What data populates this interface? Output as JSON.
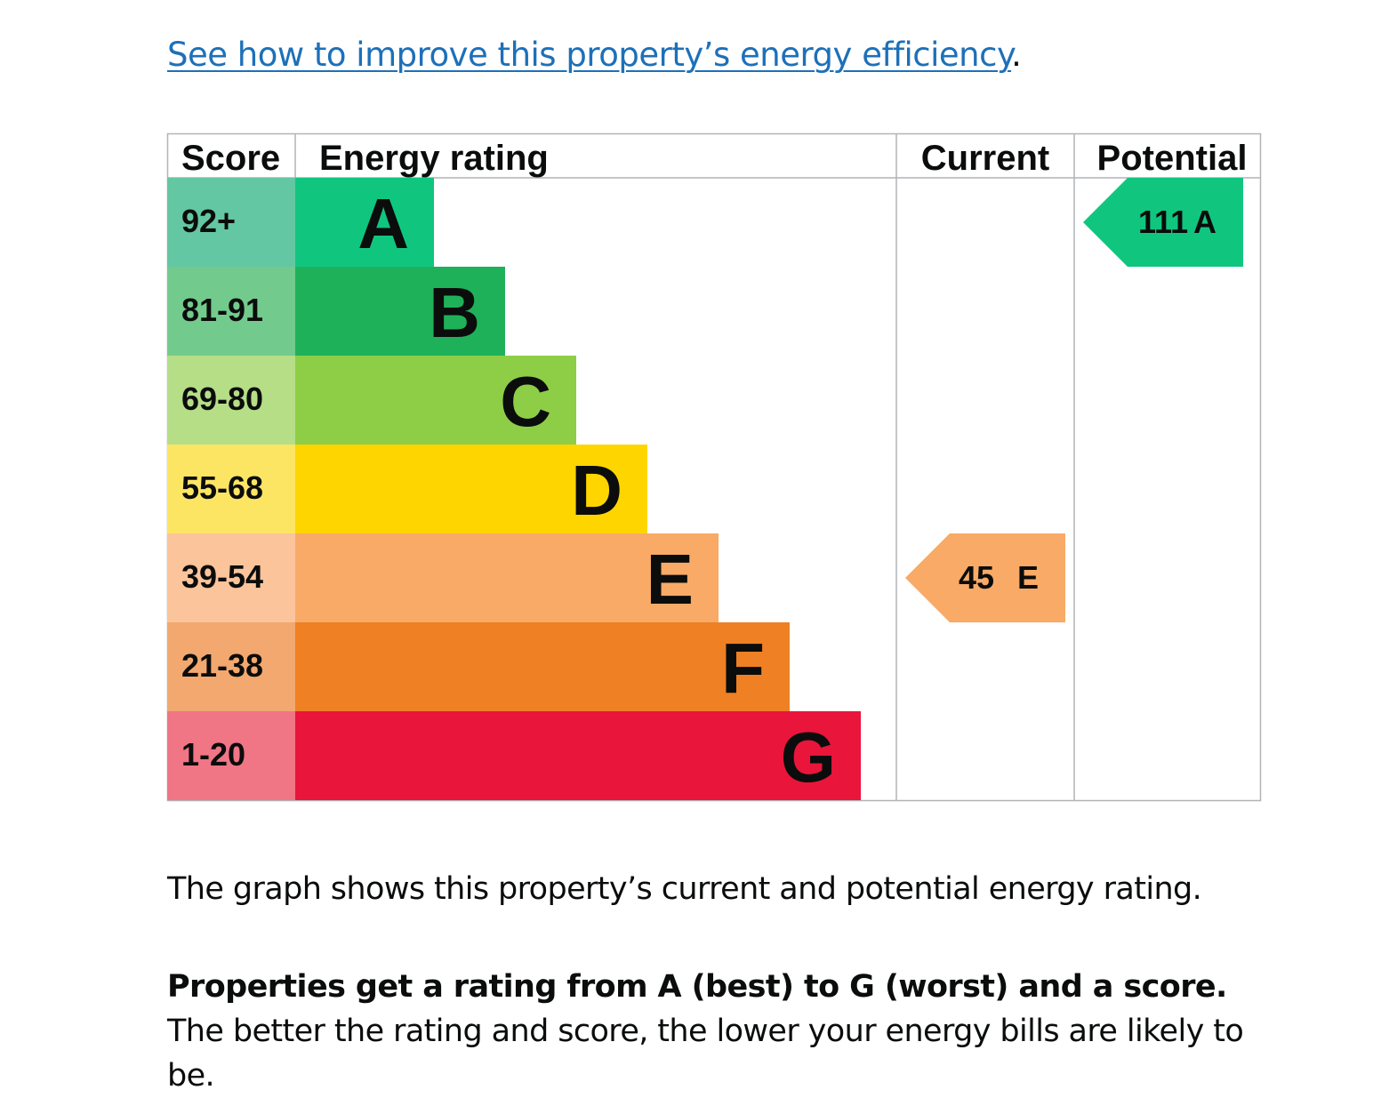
{
  "improve_link": {
    "text": "See how to improve this property’s energy efficiency",
    "trailing": "."
  },
  "table": {
    "headers": {
      "score": "Score",
      "rating": "Energy rating",
      "current": "Current",
      "potential": "Potential"
    },
    "bands": [
      {
        "letter": "A",
        "score": "92+",
        "bar_color": "#10c67f",
        "score_color": "#63c7a3"
      },
      {
        "letter": "B",
        "score": "81-91",
        "bar_color": "#1fb15a",
        "score_color": "#72cb8c"
      },
      {
        "letter": "C",
        "score": "69-80",
        "bar_color": "#8dce46",
        "score_color": "#b5de87"
      },
      {
        "letter": "D",
        "score": "55-68",
        "bar_color": "#ffd500",
        "score_color": "#fde564"
      },
      {
        "letter": "E",
        "score": "39-54",
        "bar_color": "#f8aa66",
        "score_color": "#fcc49a"
      },
      {
        "letter": "F",
        "score": "21-38",
        "bar_color": "#ef8023",
        "score_color": "#f2a86f"
      },
      {
        "letter": "G",
        "score": "1-20",
        "bar_color": "#e9153b",
        "score_color": "#f07585"
      }
    ],
    "current": {
      "score": "45",
      "letter": "E",
      "color": "#f8aa66"
    },
    "potential": {
      "score": "111",
      "letter": "A",
      "color": "#10c67f"
    }
  },
  "paragraph1": "The graph shows this property’s current and potential energy rating.",
  "paragraph2_bold": "Properties get a rating from A (best) to G (worst) and a score.",
  "paragraph2_rest": " The better the rating and score, the lower your energy bills are likely to be."
}
